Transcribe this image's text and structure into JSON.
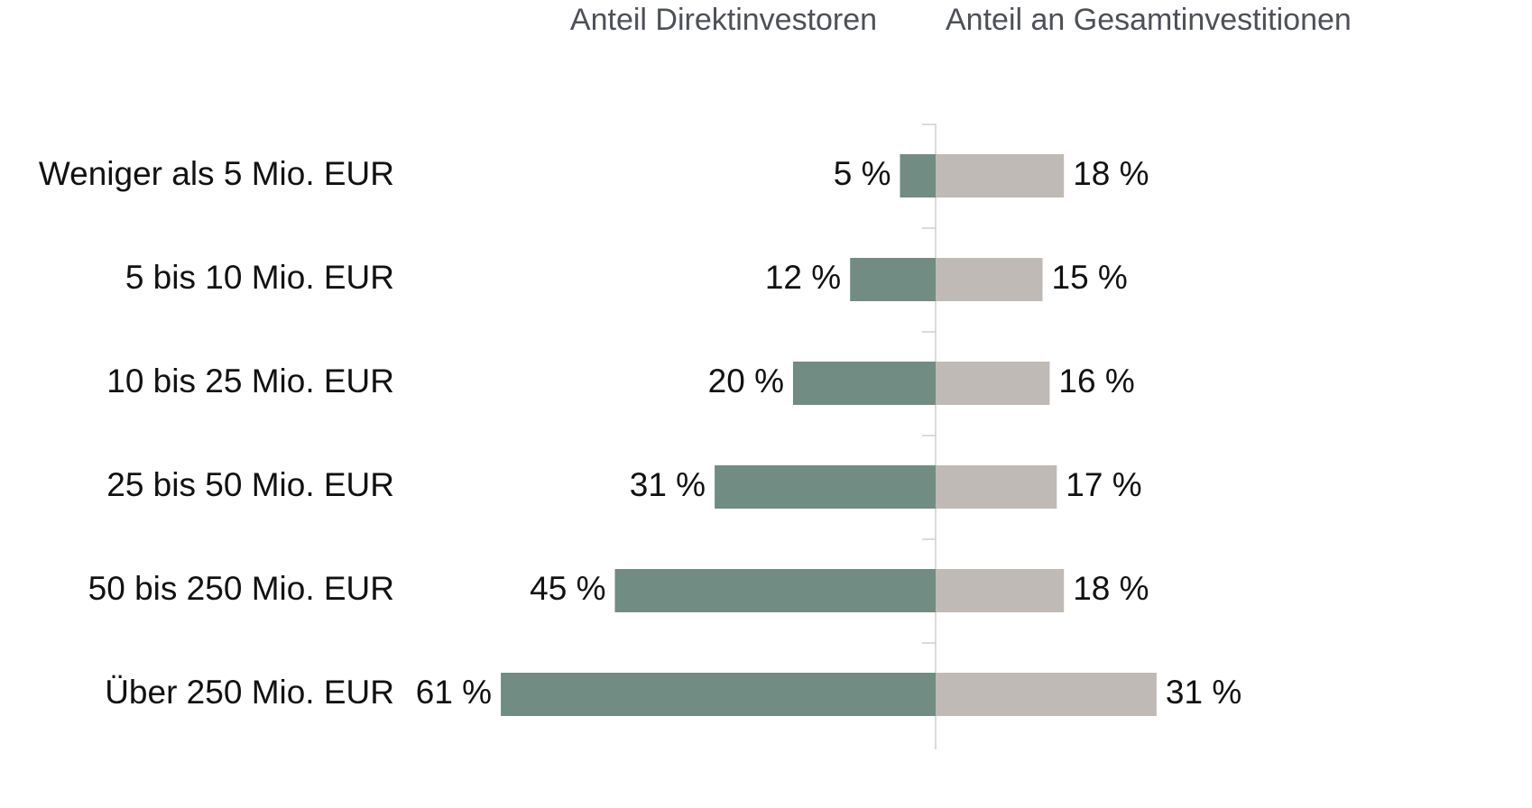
{
  "chart_data": {
    "type": "diverging-bar",
    "categories": [
      "Weniger als 5 Mio. EUR",
      "5 bis 10 Mio. EUR",
      "10 bis 25 Mio. EUR",
      "25 bis 50 Mio. EUR",
      "50 bis 250 Mio. EUR",
      "Über 250 Mio. EUR"
    ],
    "series": [
      {
        "name": "Anteil Direktinvestoren",
        "color": "#718c82",
        "values": [
          5,
          12,
          20,
          31,
          45,
          61
        ],
        "value_labels": [
          "5 %",
          "12 %",
          "20 %",
          "31 %",
          "45 %",
          "61 %"
        ]
      },
      {
        "name": "Anteil an Gesamtinvestitionen",
        "color": "#bfbab5",
        "values": [
          18,
          15,
          16,
          17,
          18,
          31
        ],
        "value_labels": [
          "18 %",
          "15 %",
          "16 %",
          "17 %",
          "18 %",
          "31 %"
        ]
      }
    ]
  }
}
